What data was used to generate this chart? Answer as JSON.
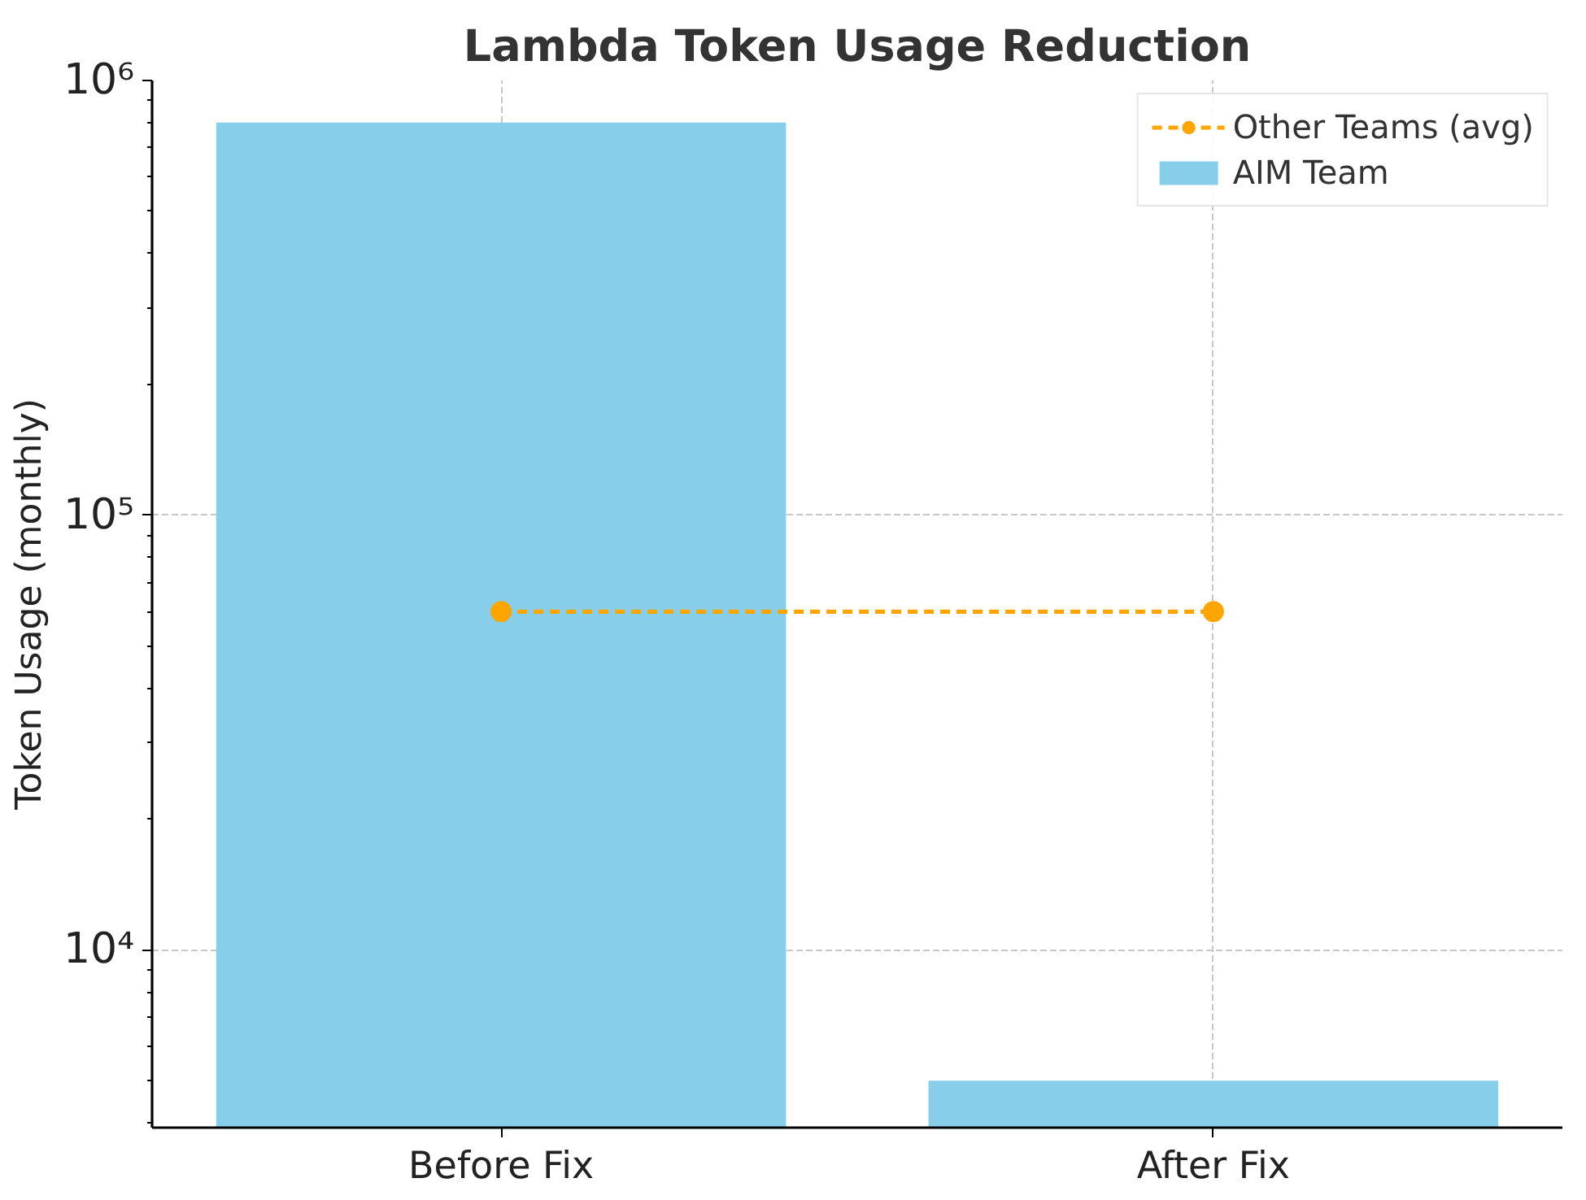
{
  "chart_data": {
    "type": "bar",
    "title": "Lambda Token Usage Reduction",
    "ylabel": "Token Usage (monthly)",
    "categories": [
      "Before Fix",
      "After Fix"
    ],
    "series": [
      {
        "name": "Other Teams (avg)",
        "type": "line",
        "color": "#ffa500",
        "values": [
          60000,
          60000
        ],
        "marker": "circle",
        "line_style": "dashed"
      },
      {
        "name": "AIM Team",
        "color": "#87ceeb",
        "values": [
          800000,
          5000
        ]
      }
    ],
    "log": "y",
    "ylim": [
      3900,
      1000000
    ],
    "yticks": [
      {
        "value": 10000,
        "label": "10⁴"
      },
      {
        "value": 100000,
        "label": "10⁵"
      },
      {
        "value": 1000000,
        "label": "10⁶"
      }
    ],
    "grid": true,
    "legend": "top right"
  }
}
